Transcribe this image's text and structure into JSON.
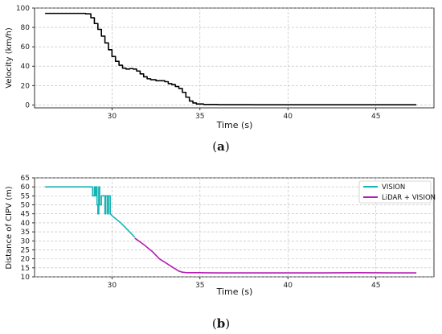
{
  "captions": {
    "a_open": "(",
    "a_letter": "a",
    "a_close": ")",
    "b_open": "(",
    "b_letter": "b",
    "b_close": ")"
  },
  "chart_data": [
    {
      "type": "line",
      "title": "",
      "xlabel": "Time (s)",
      "ylabel": "Velocity (km/h)",
      "xlim": [
        25.6,
        48.3
      ],
      "ylim": [
        -3,
        100
      ],
      "xticks": [
        30,
        35,
        40,
        45
      ],
      "yticks": [
        0,
        20,
        40,
        60,
        80,
        100
      ],
      "grid": true,
      "series": [
        {
          "color": "#000000",
          "step": true,
          "x": [
            26.2,
            27.0,
            28.0,
            28.5,
            28.8,
            29.0,
            29.2,
            29.4,
            29.6,
            29.8,
            30.0,
            30.2,
            30.4,
            30.6,
            30.8,
            31.0,
            31.2,
            31.4,
            31.6,
            31.8,
            32.0,
            32.2,
            32.5,
            32.8,
            33.0,
            33.2,
            33.4,
            33.6,
            33.8,
            34.0,
            34.2,
            34.4,
            34.6,
            34.8,
            35.2,
            36.0,
            38.0,
            40.0,
            42.0,
            45.0,
            47.3
          ],
          "y": [
            94.5,
            94.5,
            94.5,
            94,
            90,
            84,
            78,
            71,
            64,
            57,
            50,
            45,
            41,
            38,
            37,
            37.5,
            37,
            35,
            32,
            29,
            27,
            26,
            25,
            25,
            24,
            22,
            21,
            19,
            17,
            13,
            8,
            4,
            2,
            1,
            0.5,
            0.3,
            0.2,
            0.2,
            0.2,
            0.2,
            0.2
          ]
        }
      ]
    },
    {
      "type": "line",
      "title": "",
      "xlabel": "Time (s)",
      "ylabel": "Distance of CIPV (m)",
      "xlim": [
        25.6,
        48.3
      ],
      "ylim": [
        10,
        65
      ],
      "xticks": [
        30,
        35,
        40,
        45
      ],
      "yticks": [
        10,
        15,
        20,
        25,
        30,
        35,
        40,
        45,
        50,
        55,
        60,
        65
      ],
      "grid": true,
      "legend": "top-right",
      "series": [
        {
          "name": "VISION",
          "color": "#17b3b3",
          "x": [
            26.2,
            28.9,
            28.9,
            29.0,
            29.0,
            29.05,
            29.05,
            29.1,
            29.1,
            29.15,
            29.15,
            29.2,
            29.2,
            29.25,
            29.25,
            29.3,
            29.3,
            29.4,
            29.4,
            29.45,
            29.45,
            29.6,
            29.6,
            29.65,
            29.65,
            29.75,
            29.75,
            29.8,
            29.8,
            29.9,
            29.9,
            30.0,
            30.5,
            31.0,
            31.3
          ],
          "y": [
            60,
            60,
            55,
            55,
            60,
            60,
            55,
            55,
            60,
            60,
            50,
            50,
            45,
            45,
            60,
            60,
            50,
            50,
            55,
            55,
            55,
            55,
            45,
            45,
            55,
            55,
            45,
            45,
            55,
            55,
            45,
            44,
            40,
            35,
            32
          ]
        },
        {
          "name": "LiDAR + VISION",
          "color": "#b41cb4",
          "x": [
            31.3,
            31.8,
            32.3,
            32.7,
            33.1,
            33.5,
            33.8,
            34.0,
            34.3,
            35.0,
            36.0,
            38.0,
            40.0,
            42.0,
            44.0,
            46.0,
            47.3
          ],
          "y": [
            31.5,
            28,
            24,
            20,
            17.5,
            15,
            13.2,
            12.6,
            12.3,
            12.3,
            12.2,
            12.2,
            12.2,
            12.2,
            12.3,
            12.2,
            12.2
          ]
        }
      ]
    }
  ]
}
